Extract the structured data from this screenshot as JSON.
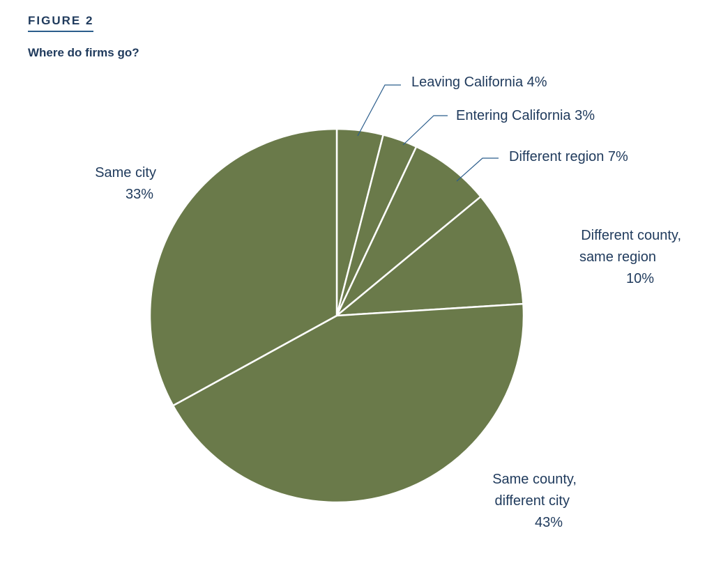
{
  "figure_label": "FIGURE 2",
  "title": "Where do firms go?",
  "colors": {
    "slice_fill": "#6a7a4a",
    "slice_stroke": "#ffffff",
    "text": "#1f3a5c",
    "leader_line": "#2b5d8c"
  },
  "chart_data": {
    "type": "pie",
    "title": "Where do firms go?",
    "slices": [
      {
        "label_lines": [
          "Leaving California  4%"
        ],
        "value": 4
      },
      {
        "label_lines": [
          "Entering California  3%"
        ],
        "value": 3
      },
      {
        "label_lines": [
          "Different region  7%"
        ],
        "value": 7
      },
      {
        "label_lines": [
          "Different county,",
          "same region",
          "10%"
        ],
        "value": 10
      },
      {
        "label_lines": [
          "Same county,",
          "different city",
          "43%"
        ],
        "value": 43
      },
      {
        "label_lines": [
          "Same city",
          "33%"
        ],
        "value": 33
      }
    ]
  }
}
